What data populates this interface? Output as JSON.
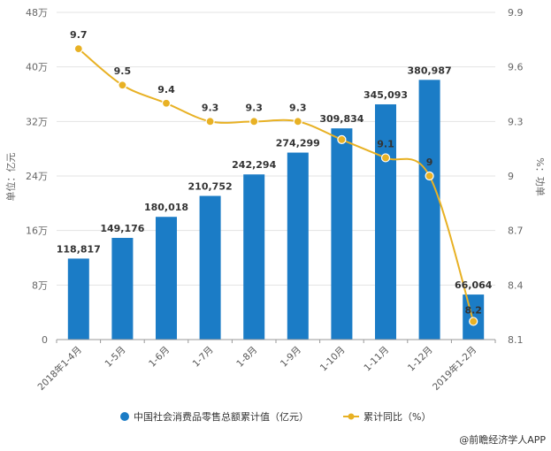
{
  "chart_data": {
    "type": "bar",
    "categories": [
      "2018年1-4月",
      "1-5月",
      "1-6月",
      "1-7月",
      "1-8月",
      "1-9月",
      "1-10月",
      "1-11月",
      "1-12月",
      "2019年1-2月"
    ],
    "series": [
      {
        "name": "中国社会消费品零售总额累计值（亿元）",
        "type": "bar",
        "axis": "left",
        "color": "#1b7cc6",
        "values": [
          118817,
          149176,
          180018,
          210752,
          242294,
          274299,
          309834,
          345093,
          380987,
          66064
        ],
        "labels": [
          "118,817",
          "149,176",
          "180,018",
          "210,752",
          "242,294",
          "274,299",
          "309,834",
          "345,093",
          "380,987",
          "66,064"
        ]
      },
      {
        "name": "累计同比（%）",
        "type": "line",
        "axis": "right",
        "color": "#e8b124",
        "values": [
          9.7,
          9.5,
          9.4,
          9.3,
          9.3,
          9.3,
          9.2,
          9.1,
          9.0,
          8.2
        ],
        "labels": [
          "9.7",
          "9.5",
          "9.4",
          "9.3",
          "9.3",
          "9.3",
          "",
          "9.1",
          "9",
          "8.2"
        ]
      }
    ],
    "y_left": {
      "label": "单位：亿元",
      "ylim": [
        0,
        480000
      ],
      "ticks": [
        0,
        80000,
        160000,
        240000,
        320000,
        400000,
        480000
      ],
      "tick_labels": [
        "0",
        "8万",
        "16万",
        "24万",
        "32万",
        "40万",
        "48万"
      ]
    },
    "y_right": {
      "label": "%：功单",
      "ylim": [
        8.1,
        9.9
      ],
      "ticks": [
        8.1,
        8.4,
        8.7,
        9.0,
        9.3,
        9.6,
        9.9
      ],
      "tick_labels": [
        "8.1",
        "8.4",
        "8.7",
        "9",
        "9.3",
        "9.6",
        "9.9"
      ]
    },
    "grid": true,
    "legend_position": "bottom"
  },
  "source": "@前瞻经济学人APP"
}
